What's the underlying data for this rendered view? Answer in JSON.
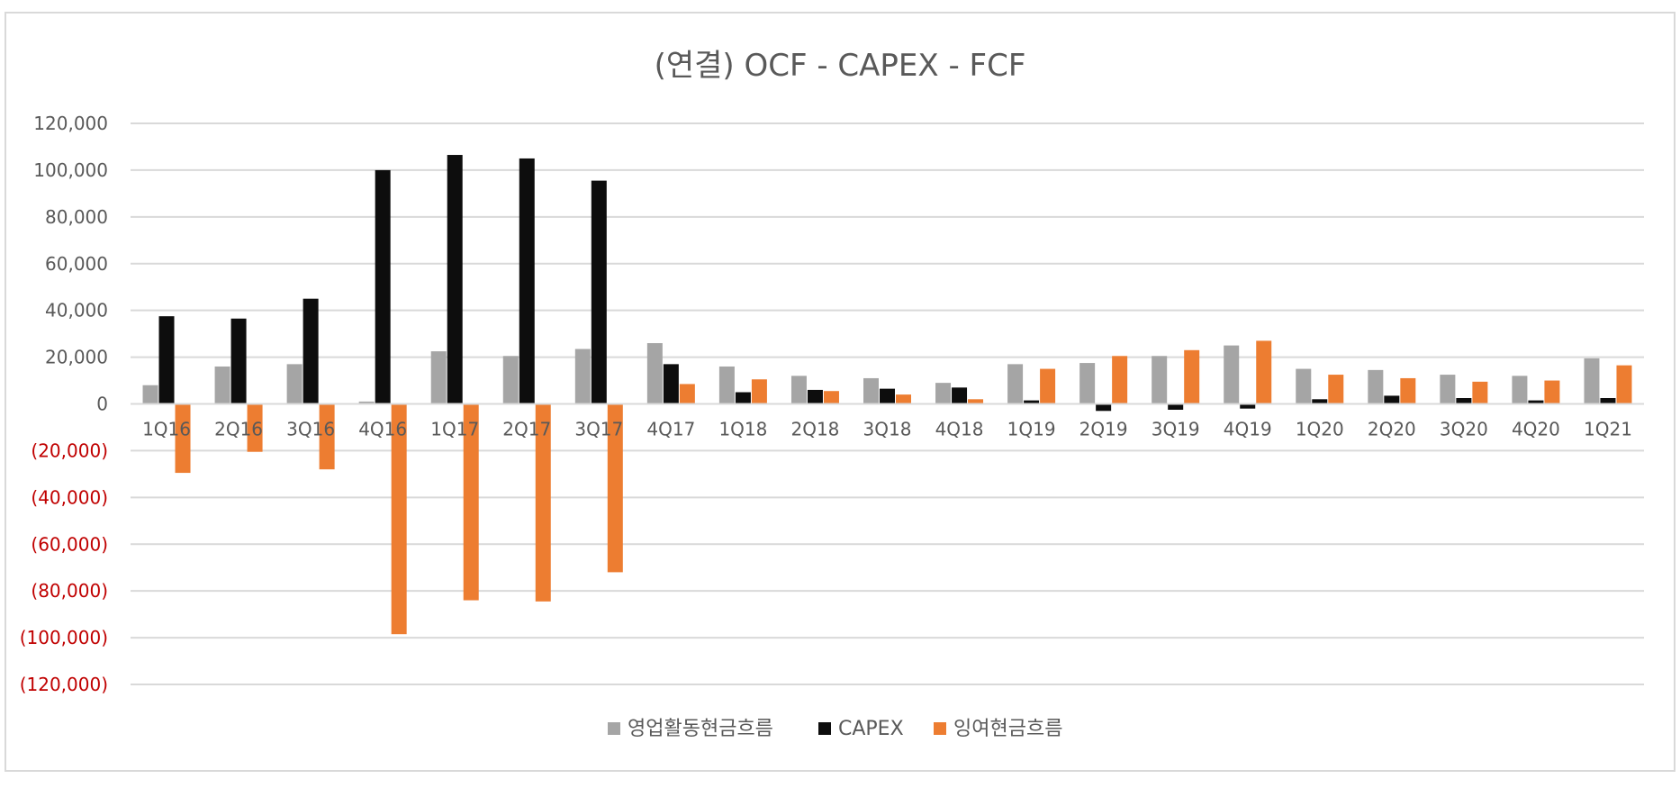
{
  "chart_data": {
    "type": "bar",
    "title": "(연결) OCF - CAPEX - FCF",
    "xlabel": "",
    "ylabel": "",
    "ylim": [
      -120000,
      120000
    ],
    "ytick_step": 20000,
    "ytick_labels": [
      "120,000",
      "100,000",
      "80,000",
      "60,000",
      "40,000",
      "20,000",
      "0",
      "(20,000)",
      "(40,000)",
      "(60,000)",
      "(80,000)",
      "(100,000)",
      "(120,000)"
    ],
    "grid": true,
    "legend_position": "bottom",
    "categories": [
      "1Q16",
      "2Q16",
      "3Q16",
      "4Q16",
      "1Q17",
      "2Q17",
      "3Q17",
      "4Q17",
      "1Q18",
      "2Q18",
      "3Q18",
      "4Q18",
      "1Q19",
      "2Q19",
      "3Q19",
      "4Q19",
      "1Q20",
      "2Q20",
      "3Q20",
      "4Q20",
      "1Q21"
    ],
    "series": [
      {
        "name": "영업활동현금흐름",
        "color": "#a5a5a5",
        "values": [
          8000,
          16000,
          17000,
          1000,
          22500,
          20500,
          23500,
          26000,
          16000,
          12000,
          11000,
          9000,
          17000,
          17500,
          20500,
          25000,
          15000,
          14500,
          12500,
          12000,
          19500
        ]
      },
      {
        "name": "CAPEX",
        "color": "#0d0d0d",
        "values": [
          37500,
          36500,
          45000,
          100000,
          106500,
          105000,
          95500,
          17000,
          5000,
          6000,
          6500,
          7000,
          1500,
          -3000,
          -2500,
          -2000,
          2000,
          3500,
          2500,
          1500,
          2500
        ]
      },
      {
        "name": "잉여현금흐름",
        "color": "#ed7d31",
        "values": [
          -29500,
          -20500,
          -28000,
          -98500,
          -84000,
          -84500,
          -72000,
          8500,
          10500,
          5500,
          4000,
          2000,
          15000,
          20500,
          23000,
          27000,
          12500,
          11000,
          9500,
          10000,
          16500
        ]
      }
    ]
  }
}
